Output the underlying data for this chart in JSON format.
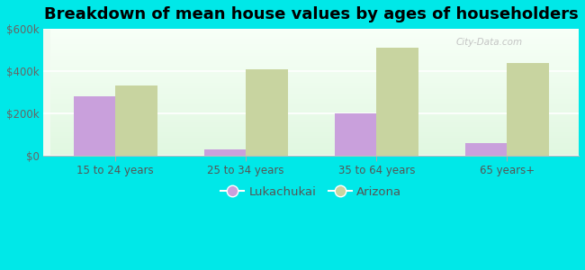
{
  "title": "Breakdown of mean house values by ages of householders",
  "categories": [
    "15 to 24 years",
    "25 to 34 years",
    "35 to 64 years",
    "65 years+"
  ],
  "lukachukai_values": [
    280000,
    30000,
    200000,
    60000
  ],
  "arizona_values": [
    330000,
    410000,
    510000,
    440000
  ],
  "lukachukai_color": "#c9a0dc",
  "arizona_color": "#c8d4a0",
  "background_color": "#00e8e8",
  "ylim": [
    0,
    600000
  ],
  "yticks": [
    0,
    200000,
    400000,
    600000
  ],
  "ytick_labels": [
    "$0",
    "$200k",
    "$400k",
    "$600k"
  ],
  "legend_lukachukai": "Lukachukai",
  "legend_arizona": "Arizona",
  "bar_width": 0.32,
  "title_fontsize": 13,
  "tick_fontsize": 8.5,
  "legend_fontsize": 9.5,
  "watermark": "City-Data.com"
}
